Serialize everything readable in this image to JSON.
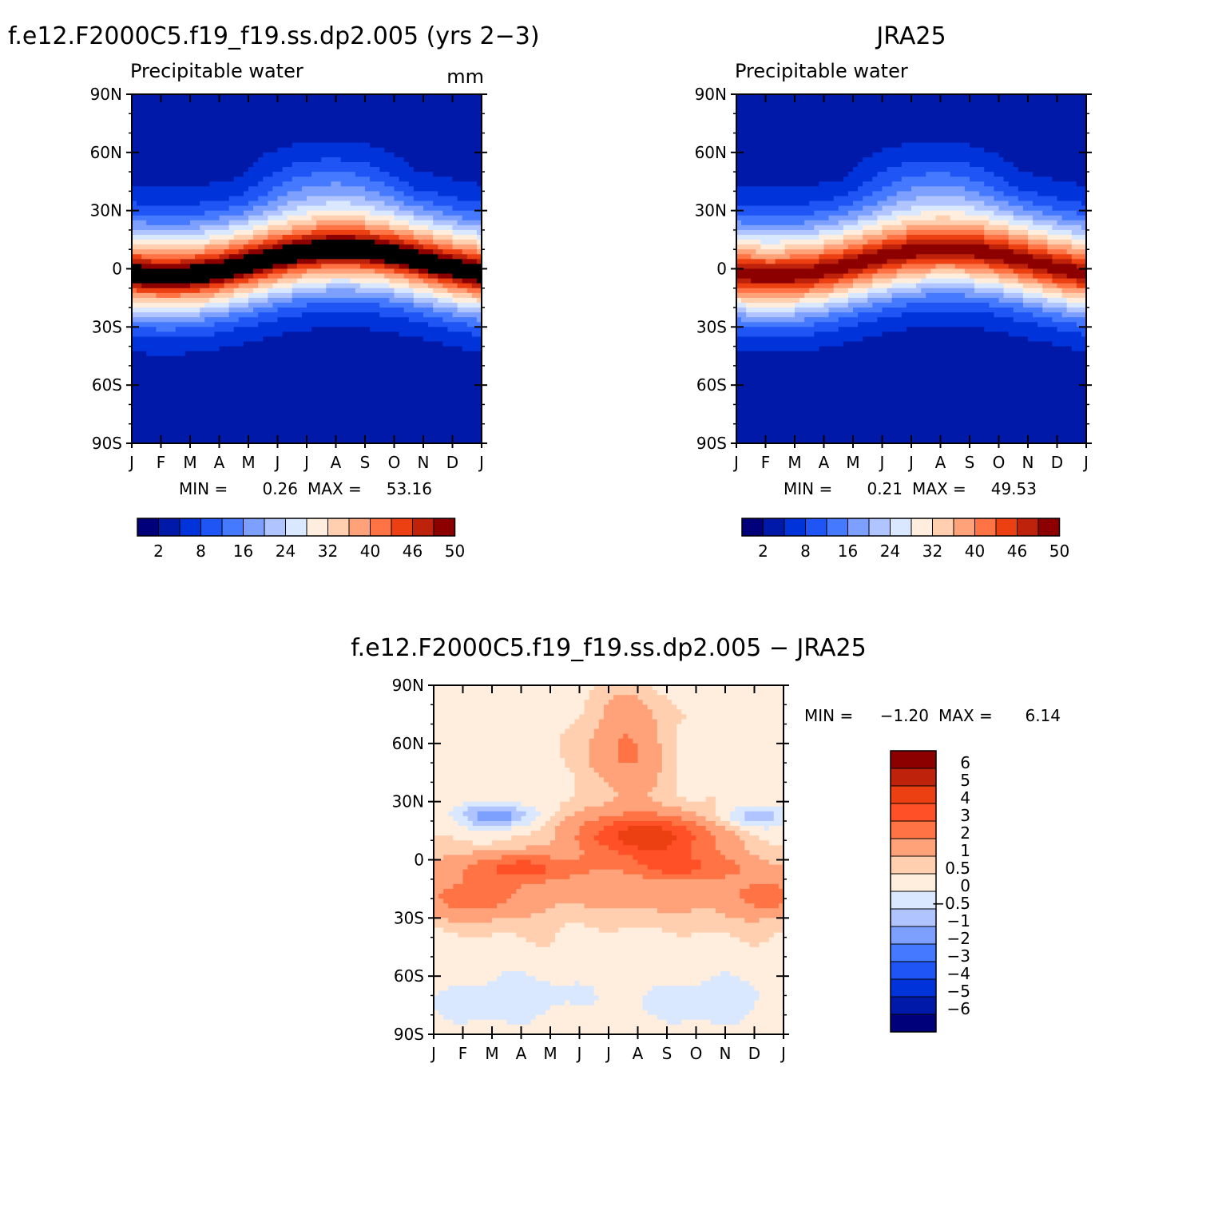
{
  "palette": {
    "levels15": [
      "#00007a",
      "#0019a8",
      "#0033d9",
      "#1f55f5",
      "#4579ff",
      "#7da0ff",
      "#b0c5ff",
      "#d9e8ff",
      "#ffeedd",
      "#ffcfb0",
      "#ffa27a",
      "#ff7345",
      "#ec3f12",
      "#bf220a",
      "#8c0000"
    ],
    "diff16": [
      "#00007a",
      "#0019a8",
      "#0033d9",
      "#1f55f5",
      "#4579ff",
      "#7da0ff",
      "#b0c5ff",
      "#d9e8ff",
      "#ffeedd",
      "#ffcfb0",
      "#ffa27a",
      "#ff7345",
      "#ff5028",
      "#ec3f12",
      "#bf220a",
      "#8c0000"
    ]
  },
  "chart_data": [
    {
      "type": "heatmap",
      "title": "f.e12.F2000C5.f19_f19.ss.dp2.005 (yrs 2−3)",
      "subtitle": "Precipitable water",
      "units": "mm",
      "x_ticks": [
        "J",
        "F",
        "M",
        "A",
        "M",
        "J",
        "J",
        "A",
        "S",
        "O",
        "N",
        "D",
        "J"
      ],
      "y_ticks": [
        "90N",
        "60N",
        "30N",
        "0",
        "30S",
        "60S",
        "90S"
      ],
      "stats": {
        "min_label": "MIN =",
        "min": "0.26",
        "max_label": "MAX =",
        "max": "53.16"
      },
      "colorbar": {
        "ticks": [
          "2",
          "8",
          "16",
          "24",
          "32",
          "40",
          "46",
          "50"
        ]
      },
      "xlim": [
        0,
        12
      ],
      "ylim": [
        -90,
        90
      ]
    },
    {
      "type": "heatmap",
      "title": "JRA25",
      "subtitle": "Precipitable water",
      "units": "",
      "x_ticks": [
        "J",
        "F",
        "M",
        "A",
        "M",
        "J",
        "J",
        "A",
        "S",
        "O",
        "N",
        "D",
        "J"
      ],
      "y_ticks": [
        "90N",
        "60N",
        "30N",
        "0",
        "30S",
        "60S",
        "90S"
      ],
      "stats": {
        "min_label": "MIN =",
        "min": "0.21",
        "max_label": "MAX =",
        "max": "49.53"
      },
      "colorbar": {
        "ticks": [
          "2",
          "8",
          "16",
          "24",
          "32",
          "40",
          "46",
          "50"
        ]
      },
      "xlim": [
        0,
        12
      ],
      "ylim": [
        -90,
        90
      ]
    },
    {
      "type": "heatmap",
      "title": "f.e12.F2000C5.f19_f19.ss.dp2.005 − JRA25",
      "x_ticks": [
        "J",
        "F",
        "M",
        "A",
        "M",
        "J",
        "J",
        "A",
        "S",
        "O",
        "N",
        "D",
        "J"
      ],
      "y_ticks": [
        "90N",
        "60N",
        "30N",
        "0",
        "30S",
        "60S",
        "90S"
      ],
      "stats": {
        "min_label": "MIN =",
        "min": "−1.20",
        "max_label": "MAX =",
        "max": "6.14"
      },
      "colorbar": {
        "ticks": [
          "6",
          "5",
          "4",
          "3",
          "2",
          "1",
          "0.5",
          "0",
          "−0.5",
          "−1",
          "−2",
          "−3",
          "−4",
          "−5",
          "−6"
        ]
      },
      "xlim": [
        0,
        12
      ],
      "ylim": [
        -90,
        90
      ]
    }
  ]
}
